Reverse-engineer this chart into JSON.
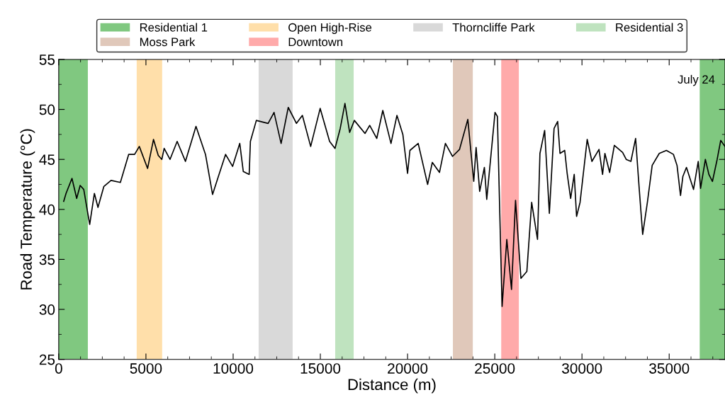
{
  "chart_data": {
    "type": "line",
    "xlabel": "Distance (m)",
    "ylabel": "Road Temperature (°C)",
    "annotations": [
      "July 24"
    ],
    "xlim": [
      0,
      38200
    ],
    "xticks": [
      0,
      5000,
      10000,
      15000,
      20000,
      25000,
      30000,
      35000
    ],
    "ylim": [
      25,
      55
    ],
    "yticks": [
      25,
      30,
      35,
      40,
      45,
      50,
      55
    ],
    "grid": false,
    "legend": "top",
    "marker": "none",
    "line_style": "solid",
    "bands": [
      {
        "axis": "x",
        "from": 0,
        "to": 1670,
        "label": "Residential 1",
        "color": "#80c880"
      },
      {
        "axis": "x",
        "from": 4470,
        "to": 5930,
        "label": "Open High-Rise",
        "color": "#ffdfaa"
      },
      {
        "axis": "x",
        "from": 11460,
        "to": 13410,
        "label": "Thorncliffe Park",
        "color": "#d9d9d9"
      },
      {
        "axis": "x",
        "from": 15850,
        "to": 16910,
        "label": "Residential 3",
        "color": "#bfe3bf"
      },
      {
        "axis": "x",
        "from": 22600,
        "to": 23740,
        "label": "Moss Park",
        "color": "#e0c8ba"
      },
      {
        "axis": "x",
        "from": 25370,
        "to": 26380,
        "label": "Downtown",
        "color": "#ffaaaa"
      },
      {
        "axis": "x",
        "from": 36750,
        "to": 38200,
        "color": "#80c880"
      }
    ],
    "series": [
      {
        "color": "#000000",
        "x": [
          285,
          420,
          760,
          1030,
          1230,
          1435,
          1775,
          2045,
          2250,
          2590,
          3000,
          3535,
          4010,
          4350,
          4620,
          5095,
          5435,
          5705,
          5910,
          6045,
          6380,
          6790,
          7265,
          7870,
          8415,
          8820,
          9230,
          9565,
          9970,
          10380,
          10580,
          10920,
          10990,
          11330,
          12005,
          12345,
          12750,
          13160,
          13630,
          13970,
          14445,
          14990,
          15530,
          15840,
          16140,
          16410,
          16680,
          16950,
          17560,
          17830,
          18235,
          18580,
          19050,
          19390,
          19730,
          20000,
          20135,
          20610,
          21150,
          21420,
          21830,
          22170,
          22575,
          22980,
          23455,
          23795,
          23930,
          24135,
          24405,
          24540,
          25015,
          25150,
          25420,
          25690,
          25960,
          26190,
          26500,
          26840,
          27115,
          27450,
          27590,
          27860,
          28130,
          28400,
          28605,
          28740,
          29010,
          29150,
          29350,
          29555,
          29690,
          29890,
          30300,
          30570,
          30975,
          31180,
          31315,
          31585,
          31855,
          32330,
          32535,
          32805,
          33075,
          33280,
          33480,
          33750,
          34025,
          34430,
          34840,
          35245,
          35450,
          35650,
          35785,
          35990,
          36395,
          36665,
          36800,
          37075,
          37275,
          37480,
          37750,
          37955,
          38200
        ],
        "values": [
          40.8,
          41.6,
          43.1,
          41.1,
          42.4,
          42.0,
          38.5,
          41.6,
          40.2,
          42.3,
          42.9,
          42.7,
          45.5,
          45.5,
          46.3,
          44.1,
          47.0,
          45.4,
          45.0,
          46.1,
          45.0,
          46.8,
          44.8,
          48.3,
          45.5,
          41.5,
          43.7,
          45.5,
          44.3,
          46.6,
          43.8,
          43.5,
          46.8,
          48.9,
          48.6,
          49.7,
          46.6,
          50.2,
          48.6,
          49.4,
          46.3,
          50.1,
          46.8,
          46.1,
          48.1,
          50.6,
          47.7,
          48.9,
          47.6,
          48.4,
          47.1,
          49.9,
          46.6,
          49.4,
          47.5,
          43.6,
          45.9,
          46.6,
          42.5,
          44.7,
          43.7,
          46.6,
          45.3,
          46.0,
          49.0,
          42.8,
          46.2,
          41.8,
          44.2,
          41.0,
          49.7,
          49.3,
          30.3,
          37.0,
          32.0,
          40.9,
          33.1,
          33.8,
          40.7,
          37.0,
          45.6,
          47.9,
          39.6,
          48.1,
          48.8,
          45.6,
          45.9,
          43.6,
          41.1,
          43.5,
          39.3,
          40.7,
          47.0,
          44.8,
          46.0,
          43.5,
          45.6,
          43.7,
          46.4,
          45.7,
          45.0,
          44.8,
          47.1,
          42.1,
          37.5,
          40.7,
          44.4,
          45.6,
          45.9,
          45.5,
          44.4,
          41.4,
          43.3,
          44.2,
          42.0,
          44.8,
          42.1,
          45.0,
          43.5,
          42.8,
          45.0,
          46.9,
          46.3
        ]
      }
    ]
  }
}
